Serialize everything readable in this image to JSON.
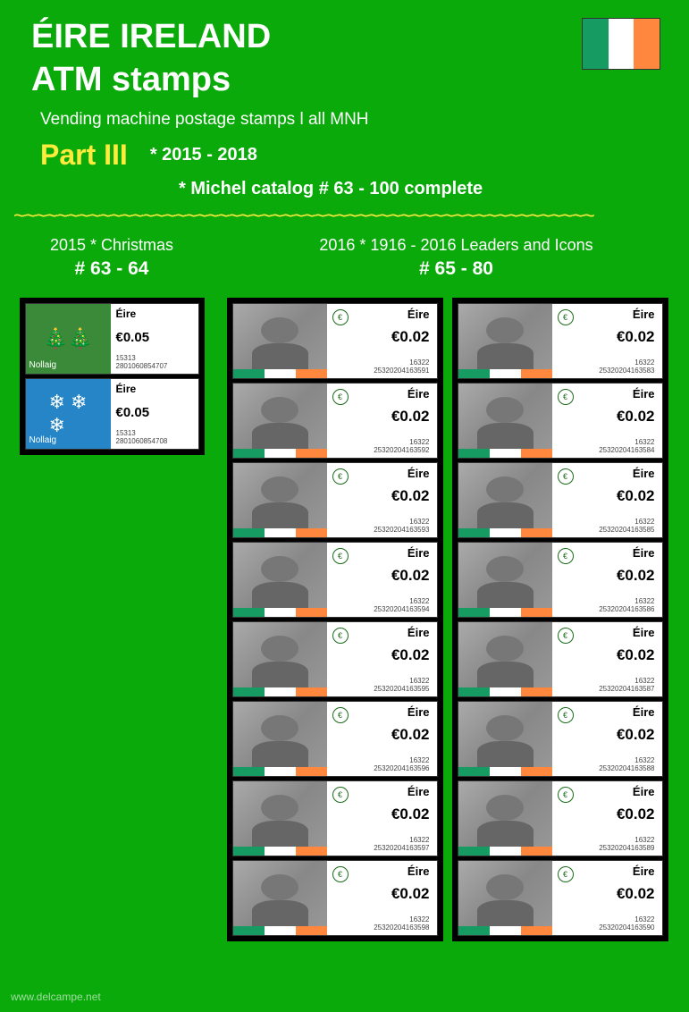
{
  "header": {
    "title": "ÉIRE   IRELAND",
    "subtitle": "ATM stamps",
    "description": "Vending machine postage stamps  l  all MNH",
    "part_label": "Part III",
    "year_range": "*  2015 - 2018",
    "catalog": "* Michel catalog # 63 - 100 complete"
  },
  "sections": {
    "left_title": "2015 * Christmas",
    "left_range": "# 63 - 64",
    "right_title": "2016 * 1916 - 2016 Leaders and Icons",
    "right_range": "# 65 - 80"
  },
  "christmas": [
    {
      "label": "Nollaig",
      "country": "Éire",
      "price": "€0.05",
      "code1": "15313",
      "code2": "2801060854707",
      "bg": "green",
      "icon": "tree"
    },
    {
      "label": "Nollaig",
      "country": "Éire",
      "price": "€0.05",
      "code1": "15313",
      "code2": "2801060854708",
      "bg": "blue",
      "icon": "snow"
    }
  ],
  "leaders_col1": [
    {
      "country": "Éire",
      "price": "€0.02",
      "code1": "16322",
      "code2": "25320204163591"
    },
    {
      "country": "Éire",
      "price": "€0.02",
      "code1": "16322",
      "code2": "25320204163592"
    },
    {
      "country": "Éire",
      "price": "€0.02",
      "code1": "16322",
      "code2": "25320204163593"
    },
    {
      "country": "Éire",
      "price": "€0.02",
      "code1": "16322",
      "code2": "25320204163594"
    },
    {
      "country": "Éire",
      "price": "€0.02",
      "code1": "16322",
      "code2": "25320204163595"
    },
    {
      "country": "Éire",
      "price": "€0.02",
      "code1": "16322",
      "code2": "25320204163596"
    },
    {
      "country": "Éire",
      "price": "€0.02",
      "code1": "16322",
      "code2": "25320204163597"
    },
    {
      "country": "Éire",
      "price": "€0.02",
      "code1": "16322",
      "code2": "25320204163598"
    }
  ],
  "leaders_col2": [
    {
      "country": "Éire",
      "price": "€0.02",
      "code1": "16322",
      "code2": "25320204163583"
    },
    {
      "country": "Éire",
      "price": "€0.02",
      "code1": "16322",
      "code2": "25320204163584"
    },
    {
      "country": "Éire",
      "price": "€0.02",
      "code1": "16322",
      "code2": "25320204163585"
    },
    {
      "country": "Éire",
      "price": "€0.02",
      "code1": "16322",
      "code2": "25320204163586"
    },
    {
      "country": "Éire",
      "price": "€0.02",
      "code1": "16322",
      "code2": "25320204163587"
    },
    {
      "country": "Éire",
      "price": "€0.02",
      "code1": "16322",
      "code2": "25320204163588"
    },
    {
      "country": "Éire",
      "price": "€0.02",
      "code1": "16322",
      "code2": "25320204163589"
    },
    {
      "country": "Éire",
      "price": "€0.02",
      "code1": "16322",
      "code2": "25320204163590"
    }
  ],
  "watermark": "www.delcampe.net",
  "seal_char": "€",
  "colors": {
    "background": "#0aaa0a",
    "yellow": "#ffeb3b",
    "text_white": "#ffffff",
    "flag_green": "#169b62",
    "flag_white": "#ffffff",
    "flag_orange": "#ff883e"
  }
}
